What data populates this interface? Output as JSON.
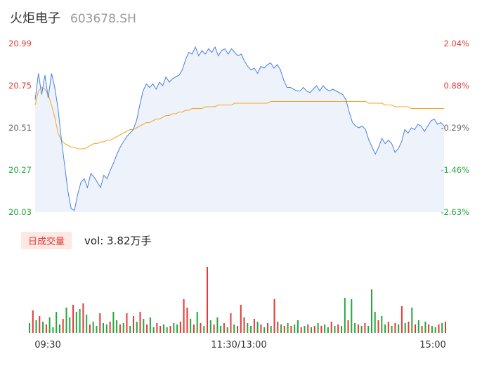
{
  "header": {
    "name": "火炬电子",
    "code": "603678.SH"
  },
  "chart_data": {
    "type": "line",
    "price_axis": {
      "labels": [
        "20.99",
        "20.75",
        "20.51",
        "20.27",
        "20.03"
      ],
      "min": 20.03,
      "max": 20.99
    },
    "pct_axis": {
      "labels": [
        "2.04%",
        "0.88%",
        "-0.29%",
        "-1.46%",
        "-2.63%"
      ]
    },
    "time_labels": [
      "09:30",
      "11:30/13:00",
      "15:00"
    ],
    "price": [
      20.67,
      20.82,
      20.7,
      20.81,
      20.68,
      20.82,
      20.74,
      20.62,
      20.45,
      20.3,
      20.15,
      20.05,
      20.04,
      20.13,
      20.2,
      20.22,
      20.17,
      20.25,
      20.23,
      20.2,
      20.17,
      20.24,
      20.22,
      20.27,
      20.31,
      20.36,
      20.4,
      20.43,
      20.46,
      20.48,
      20.5,
      20.55,
      20.64,
      20.72,
      20.76,
      20.74,
      20.76,
      20.73,
      20.77,
      20.75,
      20.8,
      20.77,
      20.79,
      20.8,
      20.81,
      20.84,
      20.9,
      20.94,
      20.93,
      20.97,
      20.92,
      20.95,
      20.93,
      20.96,
      20.94,
      20.97,
      20.92,
      20.95,
      20.96,
      20.93,
      20.96,
      20.94,
      20.92,
      20.93,
      20.89,
      20.86,
      20.84,
      20.85,
      20.82,
      20.86,
      20.85,
      20.87,
      20.88,
      20.85,
      20.87,
      20.84,
      20.78,
      20.74,
      20.74,
      20.73,
      20.72,
      20.72,
      20.74,
      20.72,
      20.71,
      20.73,
      20.75,
      20.72,
      20.75,
      20.73,
      20.72,
      20.73,
      20.72,
      20.71,
      20.7,
      20.67,
      20.6,
      20.54,
      20.52,
      20.51,
      20.52,
      20.5,
      20.44,
      20.4,
      20.36,
      20.4,
      20.45,
      20.42,
      20.44,
      20.42,
      20.37,
      20.39,
      20.43,
      20.5,
      20.48,
      20.51,
      20.5,
      20.53,
      20.52,
      20.49,
      20.52,
      20.55,
      20.56,
      20.53,
      20.54,
      20.52
    ],
    "avg": [
      20.64,
      20.72,
      20.74,
      20.73,
      20.7,
      20.64,
      20.57,
      20.48,
      20.44,
      20.42,
      20.41,
      20.4,
      20.4,
      20.39,
      20.39,
      20.39,
      20.4,
      20.41,
      20.42,
      20.42,
      20.43,
      20.43,
      20.44,
      20.44,
      20.45,
      20.46,
      20.47,
      20.48,
      20.49,
      20.5,
      20.5,
      20.51,
      20.52,
      20.53,
      20.54,
      20.54,
      20.55,
      20.56,
      20.56,
      20.57,
      20.58,
      20.58,
      20.59,
      20.59,
      20.6,
      20.6,
      20.61,
      20.61,
      20.62,
      20.62,
      20.62,
      20.62,
      20.63,
      20.63,
      20.63,
      20.63,
      20.64,
      20.64,
      20.64,
      20.64,
      20.64,
      20.65,
      20.65,
      20.65,
      20.65,
      20.65,
      20.65,
      20.65,
      20.65,
      20.65,
      20.65,
      20.65,
      20.66,
      20.66,
      20.66,
      20.66,
      20.66,
      20.66,
      20.66,
      20.66,
      20.66,
      20.66,
      20.66,
      20.66,
      20.66,
      20.66,
      20.66,
      20.66,
      20.66,
      20.66,
      20.66,
      20.66,
      20.66,
      20.66,
      20.66,
      20.66,
      20.66,
      20.66,
      20.66,
      20.66,
      20.66,
      20.66,
      20.65,
      20.65,
      20.65,
      20.65,
      20.65,
      20.64,
      20.64,
      20.64,
      20.63,
      20.63,
      20.63,
      20.63,
      20.63,
      20.62,
      20.62,
      20.62,
      20.62,
      20.62,
      20.62,
      20.62,
      20.62,
      20.62,
      20.62,
      20.62
    ],
    "volume_series": [
      {
        "v": 14,
        "c": "g"
      },
      {
        "v": 32,
        "c": "r"
      },
      {
        "v": 18,
        "c": "g"
      },
      {
        "v": 24,
        "c": "r"
      },
      {
        "v": 16,
        "c": "g"
      },
      {
        "v": 12,
        "c": "r"
      },
      {
        "v": 22,
        "c": "g"
      },
      {
        "v": 8,
        "c": "g"
      },
      {
        "v": 30,
        "c": "g"
      },
      {
        "v": 12,
        "c": "g"
      },
      {
        "v": 20,
        "c": "r"
      },
      {
        "v": 36,
        "c": "g"
      },
      {
        "v": 22,
        "c": "g"
      },
      {
        "v": 40,
        "c": "r"
      },
      {
        "v": 30,
        "c": "g"
      },
      {
        "v": 34,
        "c": "g"
      },
      {
        "v": 42,
        "c": "r"
      },
      {
        "v": 26,
        "c": "g"
      },
      {
        "v": 12,
        "c": "r"
      },
      {
        "v": 16,
        "c": "g"
      },
      {
        "v": 10,
        "c": "g"
      },
      {
        "v": 28,
        "c": "r"
      },
      {
        "v": 14,
        "c": "g"
      },
      {
        "v": 12,
        "c": "g"
      },
      {
        "v": 16,
        "c": "r"
      },
      {
        "v": 30,
        "c": "g"
      },
      {
        "v": 18,
        "c": "g"
      },
      {
        "v": 12,
        "c": "r"
      },
      {
        "v": 14,
        "c": "g"
      },
      {
        "v": 28,
        "c": "r"
      },
      {
        "v": 10,
        "c": "g"
      },
      {
        "v": 24,
        "c": "r"
      },
      {
        "v": 16,
        "c": "g"
      },
      {
        "v": 30,
        "c": "r"
      },
      {
        "v": 20,
        "c": "g"
      },
      {
        "v": 12,
        "c": "r"
      },
      {
        "v": 22,
        "c": "g"
      },
      {
        "v": 8,
        "c": "g"
      },
      {
        "v": 14,
        "c": "r"
      },
      {
        "v": 10,
        "c": "r"
      },
      {
        "v": 12,
        "c": "g"
      },
      {
        "v": 8,
        "c": "g"
      },
      {
        "v": 10,
        "c": "r"
      },
      {
        "v": 14,
        "c": "g"
      },
      {
        "v": 12,
        "c": "g"
      },
      {
        "v": 16,
        "c": "r"
      },
      {
        "v": 48,
        "c": "r"
      },
      {
        "v": 36,
        "c": "r"
      },
      {
        "v": 20,
        "c": "g"
      },
      {
        "v": 12,
        "c": "r"
      },
      {
        "v": 30,
        "c": "g"
      },
      {
        "v": 14,
        "c": "r"
      },
      {
        "v": 10,
        "c": "g"
      },
      {
        "v": 94,
        "c": "r"
      },
      {
        "v": 18,
        "c": "g"
      },
      {
        "v": 12,
        "c": "r"
      },
      {
        "v": 22,
        "c": "g"
      },
      {
        "v": 10,
        "c": "g"
      },
      {
        "v": 14,
        "c": "r"
      },
      {
        "v": 8,
        "c": "g"
      },
      {
        "v": 28,
        "c": "r"
      },
      {
        "v": 12,
        "c": "g"
      },
      {
        "v": 10,
        "c": "r"
      },
      {
        "v": 40,
        "c": "r"
      },
      {
        "v": 22,
        "c": "r"
      },
      {
        "v": 14,
        "c": "g"
      },
      {
        "v": 10,
        "c": "g"
      },
      {
        "v": 20,
        "c": "r"
      },
      {
        "v": 16,
        "c": "g"
      },
      {
        "v": 12,
        "c": "r"
      },
      {
        "v": 8,
        "c": "g"
      },
      {
        "v": 14,
        "c": "r"
      },
      {
        "v": 10,
        "c": "g"
      },
      {
        "v": 48,
        "c": "r"
      },
      {
        "v": 16,
        "c": "r"
      },
      {
        "v": 12,
        "c": "g"
      },
      {
        "v": 10,
        "c": "r"
      },
      {
        "v": 14,
        "c": "g"
      },
      {
        "v": 10,
        "c": "r"
      },
      {
        "v": 12,
        "c": "g"
      },
      {
        "v": 18,
        "c": "g"
      },
      {
        "v": 8,
        "c": "r"
      },
      {
        "v": 10,
        "c": "g"
      },
      {
        "v": 12,
        "c": "r"
      },
      {
        "v": 8,
        "c": "g"
      },
      {
        "v": 10,
        "c": "r"
      },
      {
        "v": 14,
        "c": "g"
      },
      {
        "v": 10,
        "c": "r"
      },
      {
        "v": 12,
        "c": "g"
      },
      {
        "v": 8,
        "c": "g"
      },
      {
        "v": 16,
        "c": "r"
      },
      {
        "v": 10,
        "c": "g"
      },
      {
        "v": 12,
        "c": "r"
      },
      {
        "v": 10,
        "c": "g"
      },
      {
        "v": 50,
        "c": "g"
      },
      {
        "v": 18,
        "c": "r"
      },
      {
        "v": 48,
        "c": "g"
      },
      {
        "v": 14,
        "c": "g"
      },
      {
        "v": 12,
        "c": "r"
      },
      {
        "v": 10,
        "c": "g"
      },
      {
        "v": 14,
        "c": "r"
      },
      {
        "v": 10,
        "c": "g"
      },
      {
        "v": 62,
        "c": "g"
      },
      {
        "v": 30,
        "c": "g"
      },
      {
        "v": 18,
        "c": "r"
      },
      {
        "v": 24,
        "c": "g"
      },
      {
        "v": 12,
        "c": "g"
      },
      {
        "v": 16,
        "c": "r"
      },
      {
        "v": 10,
        "c": "g"
      },
      {
        "v": 14,
        "c": "r"
      },
      {
        "v": 12,
        "c": "g"
      },
      {
        "v": 38,
        "c": "r"
      },
      {
        "v": 14,
        "c": "g"
      },
      {
        "v": 16,
        "c": "r"
      },
      {
        "v": 36,
        "c": "g"
      },
      {
        "v": 12,
        "c": "r"
      },
      {
        "v": 18,
        "c": "g"
      },
      {
        "v": 10,
        "c": "r"
      },
      {
        "v": 16,
        "c": "g"
      },
      {
        "v": 12,
        "c": "r"
      },
      {
        "v": 10,
        "c": "g"
      },
      {
        "v": 8,
        "c": "g"
      },
      {
        "v": 12,
        "c": "r"
      },
      {
        "v": 14,
        "c": "g"
      },
      {
        "v": 16,
        "c": "r"
      }
    ],
    "colors": {
      "price_line": "#4a7fe6",
      "avg_line": "#f5a623",
      "area_fill": "#eef3fb",
      "up": "#e53935",
      "down": "#22a83c",
      "label_gray": "#666666"
    }
  },
  "volume_panel": {
    "tab_label": "日成交量",
    "vol_text": "vol: 3.82万手"
  }
}
